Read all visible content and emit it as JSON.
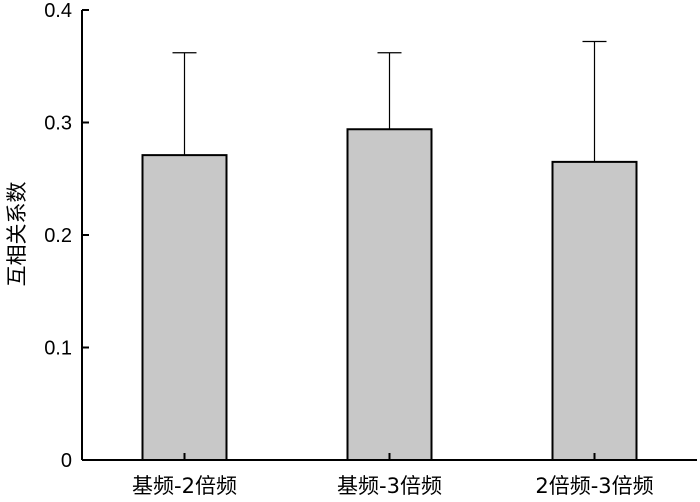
{
  "chart_data": {
    "type": "bar",
    "categories": [
      "基频-2倍频",
      "基频-3倍频",
      "2倍频-3倍频"
    ],
    "values": [
      0.271,
      0.294,
      0.265
    ],
    "error_upper": [
      0.362,
      0.362,
      0.372
    ],
    "xlabel": "",
    "ylabel": "互相关系数",
    "ylim": [
      0,
      0.4
    ],
    "yticks": [
      0,
      0.1,
      0.2,
      0.3,
      0.4
    ],
    "ytick_labels": [
      "0",
      "0.1",
      "0.2",
      "0.3",
      "0.4"
    ],
    "grid": false,
    "bar_color": "#c8c8c8",
    "edge_color": "#000000"
  }
}
